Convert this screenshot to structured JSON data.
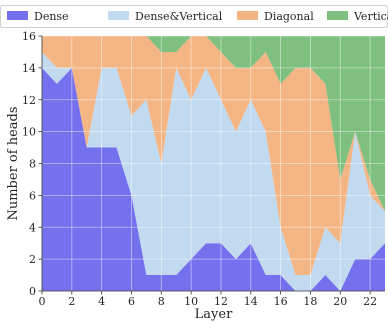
{
  "chart_data": {
    "type": "area",
    "stacked": true,
    "title": "",
    "xlabel": "Layer",
    "ylabel": "Number of heads",
    "xlim": [
      0,
      23
    ],
    "ylim": [
      0,
      16
    ],
    "xticks": [
      "0",
      "2",
      "4",
      "6",
      "8",
      "10",
      "12",
      "14",
      "16",
      "18",
      "20",
      "22"
    ],
    "yticks": [
      "0",
      "2",
      "4",
      "6",
      "8",
      "10",
      "12",
      "14",
      "16"
    ],
    "grid": true,
    "legend_position": "top",
    "x": [
      0,
      1,
      2,
      3,
      4,
      5,
      6,
      7,
      8,
      9,
      10,
      11,
      12,
      13,
      14,
      15,
      16,
      17,
      18,
      19,
      20,
      21,
      22,
      23
    ],
    "series": [
      {
        "name": "Dense",
        "color": "#7570ee",
        "values": [
          14,
          13,
          14,
          9,
          9,
          9,
          6,
          1,
          1,
          1,
          2,
          3,
          3,
          2,
          3,
          1,
          1,
          0,
          0,
          1,
          0,
          2,
          2,
          3
        ]
      },
      {
        "name": "Dense&Vertical",
        "color": "#c1daef",
        "values": [
          1,
          1,
          0,
          0,
          5,
          5,
          5,
          11,
          7,
          13,
          10,
          11,
          9,
          8,
          9,
          9,
          3,
          1,
          1,
          3,
          3,
          8,
          4,
          2
        ]
      },
      {
        "name": "Diagonal",
        "color": "#f4b585",
        "values": [
          1,
          2,
          2,
          7,
          2,
          2,
          5,
          4,
          7,
          1,
          4,
          2,
          3,
          4,
          2,
          5,
          9,
          13,
          13,
          9,
          4,
          0,
          1,
          0
        ]
      },
      {
        "name": "Vertical",
        "color": "#7fbf7f",
        "values": [
          0,
          0,
          0,
          0,
          0,
          0,
          0,
          0,
          1,
          1,
          0,
          0,
          1,
          2,
          2,
          1,
          3,
          2,
          2,
          3,
          9,
          6,
          9,
          11
        ]
      }
    ]
  }
}
